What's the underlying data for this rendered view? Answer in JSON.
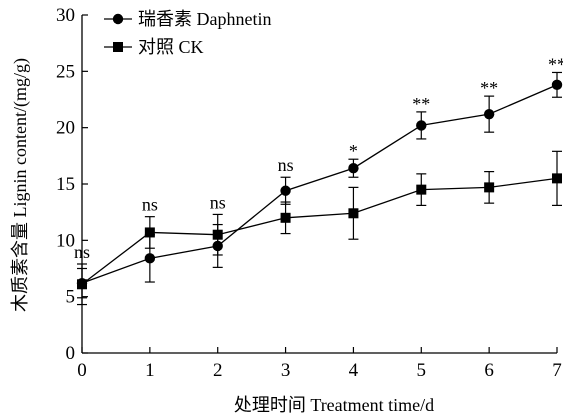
{
  "chart_data": {
    "type": "line",
    "xlabel": "处理时间 Treatment time/d",
    "ylabel": "木质素含量 Lignin content/(mg/g)",
    "x": [
      0,
      1,
      2,
      3,
      4,
      5,
      6,
      7
    ],
    "xticks": [
      "0",
      "1",
      "2",
      "3",
      "4",
      "5",
      "6",
      "7"
    ],
    "yticks": [
      "0",
      "5",
      "10",
      "15",
      "20",
      "25",
      "30"
    ],
    "xlim": [
      0,
      7
    ],
    "ylim": [
      0,
      30
    ],
    "grid": false,
    "legend_position": "top-left",
    "series": [
      {
        "name": "瑞香素 Daphnetin",
        "marker": "circle",
        "values": [
          6.2,
          8.4,
          9.5,
          14.4,
          16.4,
          20.2,
          21.2,
          23.8
        ],
        "errors": [
          1.3,
          2.1,
          1.9,
          1.2,
          0.8,
          1.2,
          1.6,
          1.1
        ]
      },
      {
        "name": "对照 CK",
        "marker": "square",
        "values": [
          6.1,
          10.7,
          10.5,
          12.0,
          12.4,
          14.5,
          14.7,
          15.5
        ],
        "errors": [
          1.8,
          1.4,
          1.8,
          1.4,
          2.3,
          1.4,
          1.4,
          2.4
        ]
      }
    ],
    "annotations": [
      "ns",
      "ns",
      "ns",
      "ns",
      "*",
      "**",
      "**",
      "**"
    ]
  }
}
